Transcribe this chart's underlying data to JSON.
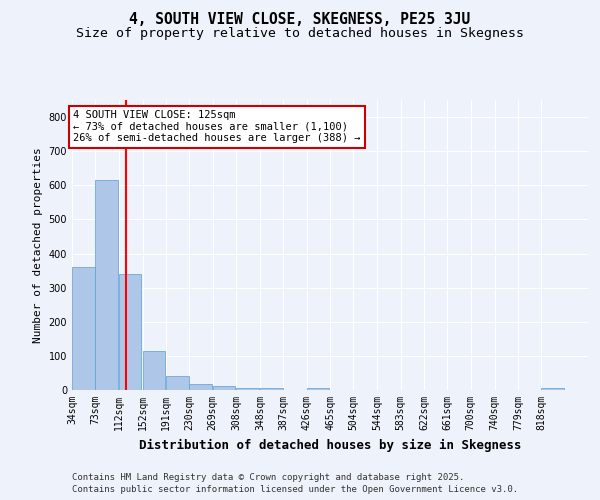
{
  "title": "4, SOUTH VIEW CLOSE, SKEGNESS, PE25 3JU",
  "subtitle": "Size of property relative to detached houses in Skegness",
  "xlabel": "Distribution of detached houses by size in Skegness",
  "ylabel": "Number of detached properties",
  "footnote1": "Contains HM Land Registry data © Crown copyright and database right 2025.",
  "footnote2": "Contains public sector information licensed under the Open Government Licence v3.0.",
  "bin_labels": [
    "34sqm",
    "73sqm",
    "112sqm",
    "152sqm",
    "191sqm",
    "230sqm",
    "269sqm",
    "308sqm",
    "348sqm",
    "387sqm",
    "426sqm",
    "465sqm",
    "504sqm",
    "544sqm",
    "583sqm",
    "622sqm",
    "661sqm",
    "700sqm",
    "740sqm",
    "779sqm",
    "818sqm"
  ],
  "bin_edges": [
    34,
    73,
    112,
    152,
    191,
    230,
    269,
    308,
    348,
    387,
    426,
    465,
    504,
    544,
    583,
    622,
    661,
    700,
    740,
    779,
    818,
    857
  ],
  "bar_heights": [
    360,
    615,
    340,
    115,
    40,
    18,
    12,
    7,
    5,
    0,
    6,
    0,
    0,
    0,
    0,
    0,
    0,
    0,
    0,
    0,
    7
  ],
  "bar_color": "#aec6e8",
  "bar_edge_color": "#5a9fd4",
  "red_line_x": 125,
  "annotation_title": "4 SOUTH VIEW CLOSE: 125sqm",
  "annotation_line1": "← 73% of detached houses are smaller (1,100)",
  "annotation_line2": "26% of semi-detached houses are larger (388) →",
  "annotation_box_color": "#ffffff",
  "annotation_box_edge": "#cc0000",
  "ylim": [
    0,
    850
  ],
  "yticks": [
    0,
    100,
    200,
    300,
    400,
    500,
    600,
    700,
    800
  ],
  "background_color": "#eef2fb",
  "grid_color": "#ffffff",
  "title_fontsize": 10.5,
  "subtitle_fontsize": 9.5,
  "xlabel_fontsize": 9,
  "ylabel_fontsize": 8,
  "tick_fontsize": 7,
  "annotation_fontsize": 7.5,
  "footnote_fontsize": 6.5
}
